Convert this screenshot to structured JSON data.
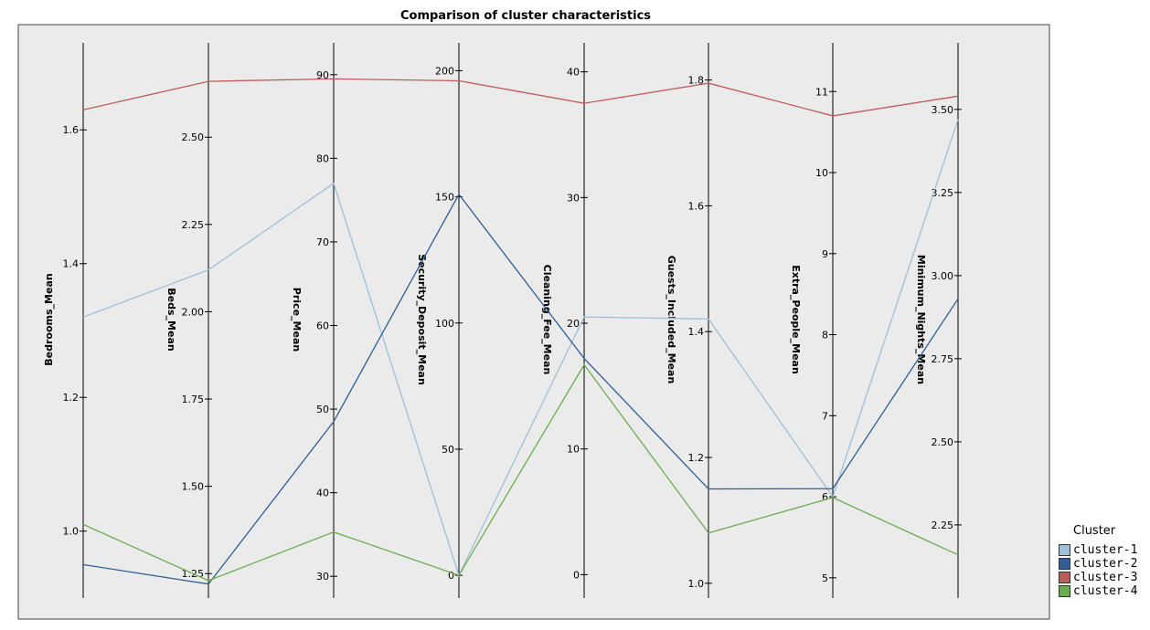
{
  "chart_data": {
    "type": "line",
    "title": "Comparison of cluster characteristics",
    "axes": [
      {
        "name": "Bedrooms_Mean",
        "range": [
          0.9,
          1.73
        ],
        "ticks": [
          1.0,
          1.2,
          1.4,
          1.6
        ],
        "tick_labels": [
          "1.0",
          "1.2",
          "1.4",
          "1.6"
        ]
      },
      {
        "name": "Beds_Mean",
        "range": [
          1.18,
          2.77
        ],
        "ticks": [
          1.25,
          1.5,
          1.75,
          2.0,
          2.25,
          2.5
        ],
        "tick_labels": [
          "1.25",
          "1.50",
          "1.75",
          "2.00",
          "2.25",
          "2.50"
        ]
      },
      {
        "name": "Price_Mean",
        "range": [
          27.4,
          93.8
        ],
        "ticks": [
          30,
          40,
          50,
          60,
          70,
          80,
          90
        ],
        "tick_labels": [
          "30",
          "40",
          "50",
          "60",
          "70",
          "80",
          "90"
        ]
      },
      {
        "name": "Security_Deposit_Mean",
        "range": [
          -9.0,
          211.0
        ],
        "ticks": [
          0,
          50,
          100,
          150,
          200
        ],
        "tick_labels": [
          "0",
          "50",
          "100",
          "150",
          "200"
        ]
      },
      {
        "name": "Cleaning_Fee_Mean",
        "range": [
          -1.86,
          42.3
        ],
        "ticks": [
          0,
          10,
          20,
          30,
          40
        ],
        "tick_labels": [
          "0",
          "10",
          "20",
          "30",
          "40"
        ]
      },
      {
        "name": "Guests_Included_Mean",
        "range": [
          0.9765,
          1.859
        ],
        "ticks": [
          1.0,
          1.2,
          1.4,
          1.6,
          1.8
        ],
        "tick_labels": [
          "1.0",
          "1.2",
          "1.4",
          "1.6",
          "1.8"
        ]
      },
      {
        "name": "Extra_People_Mean",
        "range": [
          4.75,
          11.6
        ],
        "ticks": [
          5,
          6,
          7,
          8,
          9,
          10,
          11
        ],
        "tick_labels": [
          "5",
          "6",
          "7",
          "8",
          "9",
          "10",
          "11"
        ]
      },
      {
        "name": "Minimum_Nights_Mean",
        "range": [
          2.03,
          3.7
        ],
        "ticks": [
          2.25,
          2.5,
          2.75,
          3.0,
          3.25,
          3.5
        ],
        "tick_labels": [
          "2.25",
          "2.50",
          "2.75",
          "3.00",
          "3.25",
          "3.50"
        ]
      }
    ],
    "series": [
      {
        "name": "cluster-1",
        "color": "#9ec0d8",
        "values": [
          1.32,
          2.12,
          77.0,
          0,
          20.5,
          1.42,
          6.0,
          3.47
        ]
      },
      {
        "name": "cluster-2",
        "color": "#2e5f95",
        "values": [
          0.95,
          1.22,
          48.5,
          151.0,
          17.2,
          1.15,
          6.1,
          2.93
        ]
      },
      {
        "name": "cluster-3",
        "color": "#c05b5b",
        "values": [
          1.63,
          2.66,
          89.5,
          196.0,
          37.5,
          1.795,
          10.7,
          3.54
        ]
      },
      {
        "name": "cluster-4",
        "color": "#6aad50",
        "values": [
          1.01,
          1.23,
          35.3,
          0,
          16.7,
          1.08,
          5.99,
          2.16
        ]
      }
    ],
    "legend": {
      "title": "Cluster",
      "position": "bottom-right"
    },
    "grid": false
  }
}
